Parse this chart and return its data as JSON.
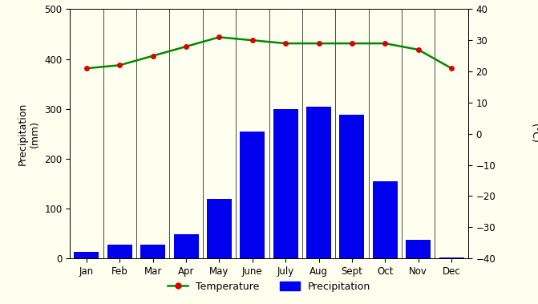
{
  "months": [
    "Jan",
    "Feb",
    "Mar",
    "Apr",
    "May",
    "June",
    "July",
    "Aug",
    "Sept",
    "Oct",
    "Nov",
    "Dec"
  ],
  "precipitation": [
    13,
    28,
    28,
    48,
    120,
    255,
    300,
    305,
    288,
    155,
    38,
    2
  ],
  "temperature": [
    21,
    22,
    25,
    28,
    31,
    30,
    29,
    29,
    29,
    29,
    27,
    21
  ],
  "bar_color": "#0000ee",
  "line_color": "#008800",
  "dot_color": "#dd0000",
  "background_color": "#fffff0",
  "ylim_precip": [
    0,
    500
  ],
  "ylim_temp": [
    -40,
    40
  ],
  "ylabel_left": "Precipitation\n(mm)",
  "ylabel_right": "Temperature\n(°C)",
  "legend_temp": "Temperature",
  "legend_precip": "Precipitation",
  "precip_yticks": [
    0,
    100,
    200,
    300,
    400,
    500
  ],
  "temp_yticks": [
    -40,
    -30,
    -20,
    -10,
    0,
    10,
    20,
    30,
    40
  ]
}
